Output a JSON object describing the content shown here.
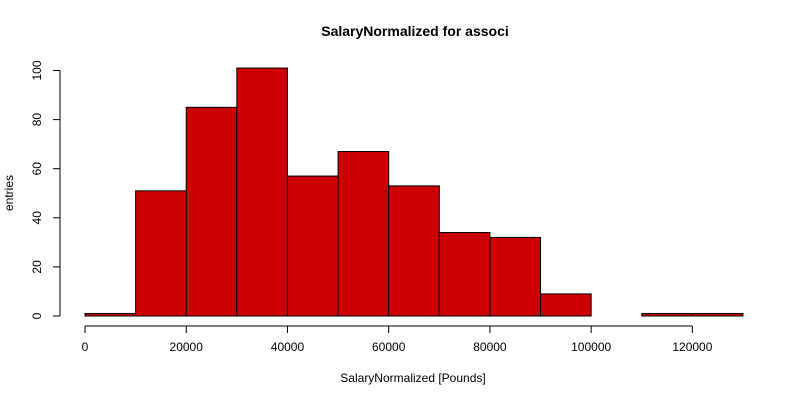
{
  "chart_data": {
    "type": "bar",
    "title": "SalaryNormalized for associ",
    "xlabel": "SalaryNormalized [Pounds]",
    "ylabel": "entries",
    "bar_color": "#cc0000",
    "bin_width": 10000,
    "bins": [
      {
        "x0": 0,
        "x1": 10000,
        "value": 1
      },
      {
        "x0": 10000,
        "x1": 20000,
        "value": 51
      },
      {
        "x0": 20000,
        "x1": 30000,
        "value": 85
      },
      {
        "x0": 30000,
        "x1": 40000,
        "value": 101
      },
      {
        "x0": 40000,
        "x1": 50000,
        "value": 57
      },
      {
        "x0": 50000,
        "x1": 60000,
        "value": 67
      },
      {
        "x0": 60000,
        "x1": 70000,
        "value": 53
      },
      {
        "x0": 70000,
        "x1": 80000,
        "value": 34
      },
      {
        "x0": 80000,
        "x1": 90000,
        "value": 32
      },
      {
        "x0": 90000,
        "x1": 100000,
        "value": 9
      },
      {
        "x0": 100000,
        "x1": 110000,
        "value": 0
      },
      {
        "x0": 110000,
        "x1": 120000,
        "value": 1
      },
      {
        "x0": 120000,
        "x1": 130000,
        "value": 1
      }
    ],
    "xlim": [
      0,
      130000
    ],
    "ylim": [
      0,
      100
    ],
    "x_ticks": [
      "0",
      "20000",
      "40000",
      "60000",
      "80000",
      "100000",
      "120000"
    ],
    "y_ticks": [
      "0",
      "20",
      "40",
      "60",
      "80",
      "100"
    ],
    "grid": false
  }
}
